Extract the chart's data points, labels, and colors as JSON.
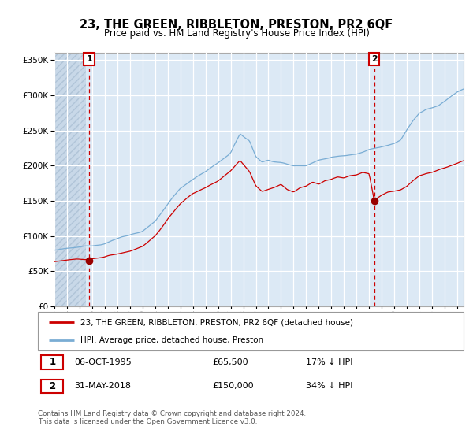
{
  "title": "23, THE GREEN, RIBBLETON, PRESTON, PR2 6QF",
  "subtitle": "Price paid vs. HM Land Registry's House Price Index (HPI)",
  "legend_label_red": "23, THE GREEN, RIBBLETON, PRESTON, PR2 6QF (detached house)",
  "legend_label_blue": "HPI: Average price, detached house, Preston",
  "annotation1_date": "06-OCT-1995",
  "annotation1_price": "£65,500",
  "annotation1_hpi": "17% ↓ HPI",
  "annotation1_year": 1995.76,
  "annotation1_value": 65500,
  "annotation2_date": "31-MAY-2018",
  "annotation2_price": "£150,000",
  "annotation2_hpi": "34% ↓ HPI",
  "annotation2_year": 2018.41,
  "annotation2_value": 150000,
  "footer": "Contains HM Land Registry data © Crown copyright and database right 2024.\nThis data is licensed under the Open Government Licence v3.0.",
  "ylim": [
    0,
    360000
  ],
  "yticks": [
    0,
    50000,
    100000,
    150000,
    200000,
    250000,
    300000,
    350000
  ],
  "xmin": 1993.0,
  "xmax": 2025.5,
  "background_color": "#dce9f5",
  "grid_color": "#ffffff",
  "red_color": "#cc0000",
  "blue_color": "#7aadd4",
  "vline_color": "#cc0000",
  "hatch_end": 1995.5
}
